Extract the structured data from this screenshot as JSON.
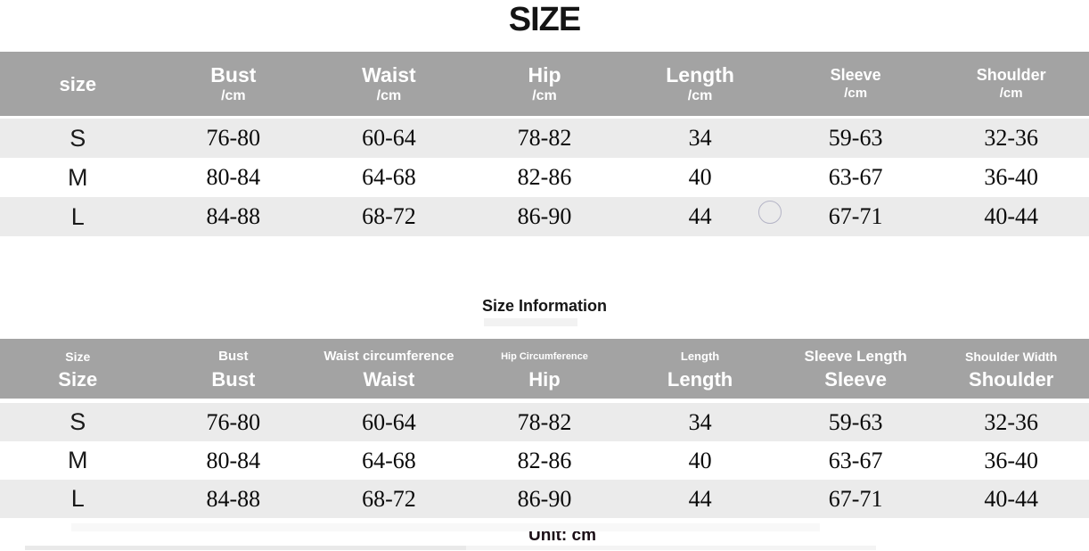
{
  "page_title": "SIZE",
  "colors": {
    "header_bg": "#a3a3a3",
    "row_stripe_bg": "#ebebeb",
    "row_plain_bg": "#ffffff",
    "header_text": "#ffffff",
    "body_text": "#000000"
  },
  "table1": {
    "columns": [
      {
        "label": "size",
        "sub": ""
      },
      {
        "label": "Bust",
        "sub": "/cm"
      },
      {
        "label": "Waist",
        "sub": "/cm"
      },
      {
        "label": "Hip",
        "sub": "/cm"
      },
      {
        "label": "Length",
        "sub": "/cm"
      },
      {
        "label": "Sleeve",
        "sub": "/cm"
      },
      {
        "label": "Shoulder",
        "sub": "/cm"
      }
    ],
    "rows": [
      [
        "S",
        "76-80",
        "60-64",
        "78-82",
        "34",
        "59-63",
        "32-36"
      ],
      [
        "M",
        "80-84",
        "64-68",
        "82-86",
        "40",
        "63-67",
        "36-40"
      ],
      [
        "L",
        "84-88",
        "68-72",
        "86-90",
        "44",
        "67-71",
        "40-44"
      ]
    ]
  },
  "section2": {
    "title": "Size Information",
    "unit_label": "Unit: cm"
  },
  "table2": {
    "columns": [
      {
        "small": "Size",
        "large": "Size"
      },
      {
        "small": "Bust",
        "large": "Bust"
      },
      {
        "small": "Waist circumference",
        "large": "Waist"
      },
      {
        "small": "Hip Circumference",
        "large": "Hip"
      },
      {
        "small": "Length",
        "large": "Length"
      },
      {
        "small": "Sleeve Length",
        "large": "Sleeve"
      },
      {
        "small": "Shoulder Width",
        "large": "Shoulder"
      }
    ],
    "rows": [
      [
        "S",
        "76-80",
        "60-64",
        "78-82",
        "34",
        "59-63",
        "32-36"
      ],
      [
        "M",
        "80-84",
        "64-68",
        "82-86",
        "40",
        "63-67",
        "36-40"
      ],
      [
        "L",
        "84-88",
        "68-72",
        "86-90",
        "44",
        "67-71",
        "40-44"
      ]
    ]
  }
}
